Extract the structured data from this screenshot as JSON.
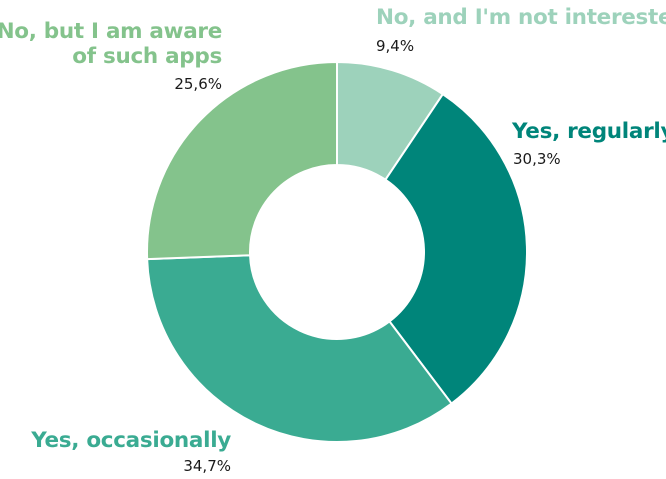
{
  "chart_data": {
    "type": "donut",
    "title": "",
    "slices": [
      {
        "label": "No, and I'm not interested",
        "value": 9.4,
        "value_label": "9,4%",
        "color": "#9dd2bb"
      },
      {
        "label": "Yes, regularly",
        "value": 30.3,
        "value_label": "30,3%",
        "color": "#00857a"
      },
      {
        "label": "Yes, occasionally",
        "value": 34.7,
        "value_label": "34,7%",
        "color": "#3aab92"
      },
      {
        "label_lines": [
          "No, but I am aware",
          "of such apps"
        ],
        "value": 25.6,
        "value_label": "25,6%",
        "color": "#84c38c"
      }
    ]
  }
}
